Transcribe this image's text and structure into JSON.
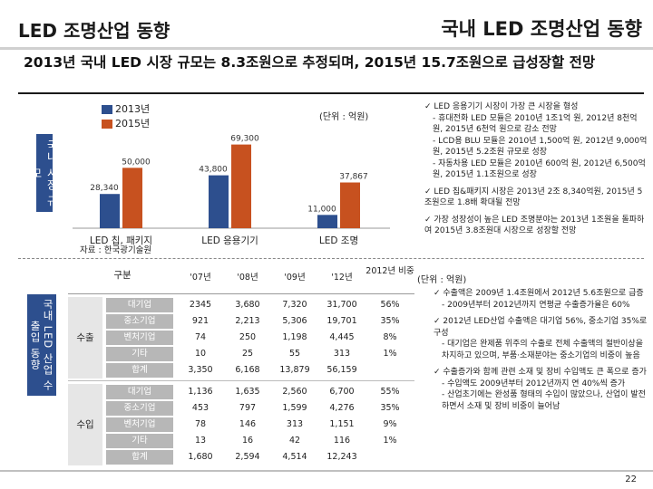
{
  "header": {
    "left_title": "LED 조명산업 동향",
    "right_title": "국내 LED 조명산업 동향"
  },
  "headline": "2013년 국내 LED 시장 규모는 8.3조원으로 추정되며, 2015년 15.7조원으로 급성장할 전망",
  "chart_section": {
    "side_label": "국내 시장 규모",
    "unit": "(단위 : 억원)",
    "source": "자료 : 한국광기술원"
  },
  "chart_data": {
    "type": "bar",
    "categories": [
      "LED 칩, 패키지",
      "LED 응용기기",
      "LED 조명"
    ],
    "series": [
      {
        "name": "2013년",
        "values": [
          28340,
          43800,
          11000
        ],
        "color": "#2d4f8e"
      },
      {
        "name": "2015년",
        "values": [
          50000,
          69300,
          37867
        ],
        "color": "#c7511f"
      }
    ],
    "data_labels": {
      "2013년": [
        "28,340",
        "43,800",
        "11,000"
      ],
      "2015년": [
        "50,000",
        "69,300",
        "37,867"
      ]
    },
    "ylim": [
      0,
      75000
    ],
    "legend_position": "top-left"
  },
  "chart_notes": [
    {
      "kind": "check",
      "text": "LED 응용기기 시장이 가장 큰 시장을 형성"
    },
    {
      "kind": "sub",
      "text": "- 휴대전화 LED 모듈은 2010년 1조1억 원, 2012년 8천억 원, 2015년 6천억 원으로 감소 전망"
    },
    {
      "kind": "sub",
      "text": "- LCD용 BLU 모듈은 2010년 1,500억 원, 2012년 9,000억 원, 2015년 5.2조원 규모로 성장"
    },
    {
      "kind": "sub",
      "text": "- 자동차용 LED 모듈은 2010년 600억 원, 2012년 6,500억 원, 2015년 1.1조원으로 성장"
    },
    {
      "kind": "check",
      "text": "LED 칩&패키지 시장은 2013년 2조 8,340억원, 2015년 5조원으로 1.8배 확대될 전망"
    },
    {
      "kind": "check",
      "text": "가장 성장성이 높은 LED 조명분야는 2013년 1조원을 돌파하여 2015년 3.8조원대 시장으로 성장할 전망"
    }
  ],
  "table_section": {
    "side_label": "국내 LED 산업 수출입 동향",
    "unit": "(단위 : 억원)",
    "header": {
      "gubun": "구분",
      "years": [
        "'07년",
        "'08년",
        "'09년",
        "'12년"
      ],
      "weight": "2012년 비중"
    },
    "groups": [
      {
        "label": "수출",
        "rows": [
          {
            "name": "대기업",
            "values": [
              "2345",
              "3,680",
              "7,320",
              "31,700"
            ],
            "share": "56%"
          },
          {
            "name": "중소기업",
            "values": [
              "921",
              "2,213",
              "5,306",
              "19,701"
            ],
            "share": "35%"
          },
          {
            "name": "벤처기업",
            "values": [
              "74",
              "250",
              "1,198",
              "4,445"
            ],
            "share": "8%"
          },
          {
            "name": "기타",
            "values": [
              "10",
              "25",
              "55",
              "313"
            ],
            "share": "1%"
          },
          {
            "name": "합계",
            "values": [
              "3,350",
              "6,168",
              "13,879",
              "56,159"
            ],
            "share": ""
          }
        ]
      },
      {
        "label": "수입",
        "rows": [
          {
            "name": "대기업",
            "values": [
              "1,136",
              "1,635",
              "2,560",
              "6,700"
            ],
            "share": "55%"
          },
          {
            "name": "중소기업",
            "values": [
              "453",
              "797",
              "1,599",
              "4,276"
            ],
            "share": "35%"
          },
          {
            "name": "벤처기업",
            "values": [
              "78",
              "146",
              "313",
              "1,151"
            ],
            "share": "9%"
          },
          {
            "name": "기타",
            "values": [
              "13",
              "16",
              "42",
              "116"
            ],
            "share": "1%"
          },
          {
            "name": "합계",
            "values": [
              "1,680",
              "2,594",
              "4,514",
              "12,243"
            ],
            "share": ""
          }
        ]
      }
    ]
  },
  "table_notes": [
    {
      "kind": "check",
      "text": "수출액은 2009년 1.4조원에서 2012년 5.6조원으로 급증"
    },
    {
      "kind": "sub",
      "text": "- 2009년부터 2012년까지 연평균 수출증가율은 60%"
    },
    {
      "kind": "check",
      "text": "2012년 LED산업 수출액은 대기업 56%, 중소기업 35%로 구성"
    },
    {
      "kind": "sub",
      "text": "- 대기업은 완제품 위주의 수출로 전체 수출액의 절반이상을 차지하고 있으며, 부품·소재분야는 중소기업의 비중이 높음"
    },
    {
      "kind": "check",
      "text": "수출증가와 함께 관련 소재 및 장비 수입액도 큰 폭으로 증가"
    },
    {
      "kind": "sub",
      "text": "- 수입액도 2009년부터 2012년까지 연 40%씩 증가"
    },
    {
      "kind": "sub",
      "text": "- 산업초기에는 완성품 형태의 수입이 많았으나, 산업이 발전하면서 소재 및 장비 비중이 늘어남"
    }
  ],
  "page_number": "22"
}
